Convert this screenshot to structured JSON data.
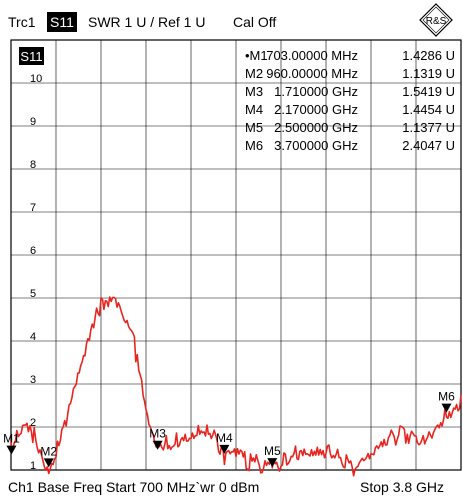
{
  "header": {
    "trace_label": "Trc1",
    "parameter_badge": "S11",
    "format": "SWR  1 U /  Ref 1 U",
    "calibration": "Cal Off"
  },
  "footer": {
    "left": "Ch1  Base Freq Start  700 MHz`wr  0 dBm",
    "right": "Stop  3.8 GHz"
  },
  "logo_text": "R&S",
  "colors": {
    "trace": "#e8251f",
    "grid": "#000000",
    "background": "#ffffff"
  },
  "chart_data": {
    "type": "line",
    "title": "",
    "xlabel": "",
    "ylabel": "",
    "in_plot_badge": "S11",
    "xlim": [
      700,
      3800
    ],
    "ylim": [
      1,
      11
    ],
    "yticks": [
      1,
      2,
      3,
      4,
      5,
      6,
      7,
      8,
      9,
      10
    ],
    "x_units": "MHz",
    "grid": true,
    "series": [
      {
        "points": [
          [
            700,
            1.8
          ],
          [
            703,
            1.43
          ],
          [
            740,
            1.85
          ],
          [
            780,
            1.98
          ],
          [
            820,
            2.0
          ],
          [
            860,
            1.9
          ],
          [
            900,
            1.6
          ],
          [
            940,
            1.3
          ],
          [
            960,
            1.13
          ],
          [
            990,
            1.4
          ],
          [
            1030,
            1.8
          ],
          [
            1080,
            2.2
          ],
          [
            1130,
            2.8
          ],
          [
            1180,
            3.4
          ],
          [
            1230,
            4.0
          ],
          [
            1280,
            4.6
          ],
          [
            1320,
            4.9
          ],
          [
            1360,
            5.1
          ],
          [
            1400,
            5.2
          ],
          [
            1440,
            5.0
          ],
          [
            1480,
            4.8
          ],
          [
            1520,
            4.6
          ],
          [
            1560,
            3.8
          ],
          [
            1600,
            3.0
          ],
          [
            1640,
            2.2
          ],
          [
            1680,
            1.8
          ],
          [
            1710,
            1.54
          ],
          [
            1760,
            1.7
          ],
          [
            1840,
            1.85
          ],
          [
            1920,
            2.0
          ],
          [
            2000,
            2.05
          ],
          [
            2060,
            2.1
          ],
          [
            2120,
            1.8
          ],
          [
            2170,
            1.45
          ],
          [
            2250,
            1.4
          ],
          [
            2350,
            1.3
          ],
          [
            2450,
            1.2
          ],
          [
            2500,
            1.14
          ],
          [
            2580,
            1.4
          ],
          [
            2660,
            1.55
          ],
          [
            2740,
            1.62
          ],
          [
            2820,
            1.6
          ],
          [
            2900,
            1.55
          ],
          [
            2980,
            1.3
          ],
          [
            3060,
            1.15
          ],
          [
            3140,
            1.2
          ],
          [
            3220,
            1.5
          ],
          [
            3300,
            1.8
          ],
          [
            3380,
            1.95
          ],
          [
            3460,
            1.95
          ],
          [
            3540,
            1.9
          ],
          [
            3620,
            2.1
          ],
          [
            3700,
            2.4
          ],
          [
            3760,
            2.6
          ],
          [
            3800,
            2.75
          ]
        ]
      }
    ],
    "markers": [
      {
        "name": "M1",
        "x": 703,
        "y": 1.4286,
        "freq": "703.00000 MHz",
        "value": "1.4286 U",
        "active": true
      },
      {
        "name": "M2",
        "x": 960,
        "y": 1.1319,
        "freq": "960.00000 MHz",
        "value": "1.1319 U",
        "active": false
      },
      {
        "name": "M3",
        "x": 1710,
        "y": 1.5419,
        "freq": "1.710000 GHz",
        "value": "1.5419 U",
        "active": false
      },
      {
        "name": "M4",
        "x": 2170,
        "y": 1.4454,
        "freq": "2.170000 GHz",
        "value": "1.4454 U",
        "active": false
      },
      {
        "name": "M5",
        "x": 2500,
        "y": 1.1377,
        "freq": "2.500000 GHz",
        "value": "1.1377 U",
        "active": false
      },
      {
        "name": "M6",
        "x": 3700,
        "y": 2.4047,
        "freq": "3.700000 GHz",
        "value": "2.4047 U",
        "active": false
      }
    ]
  }
}
